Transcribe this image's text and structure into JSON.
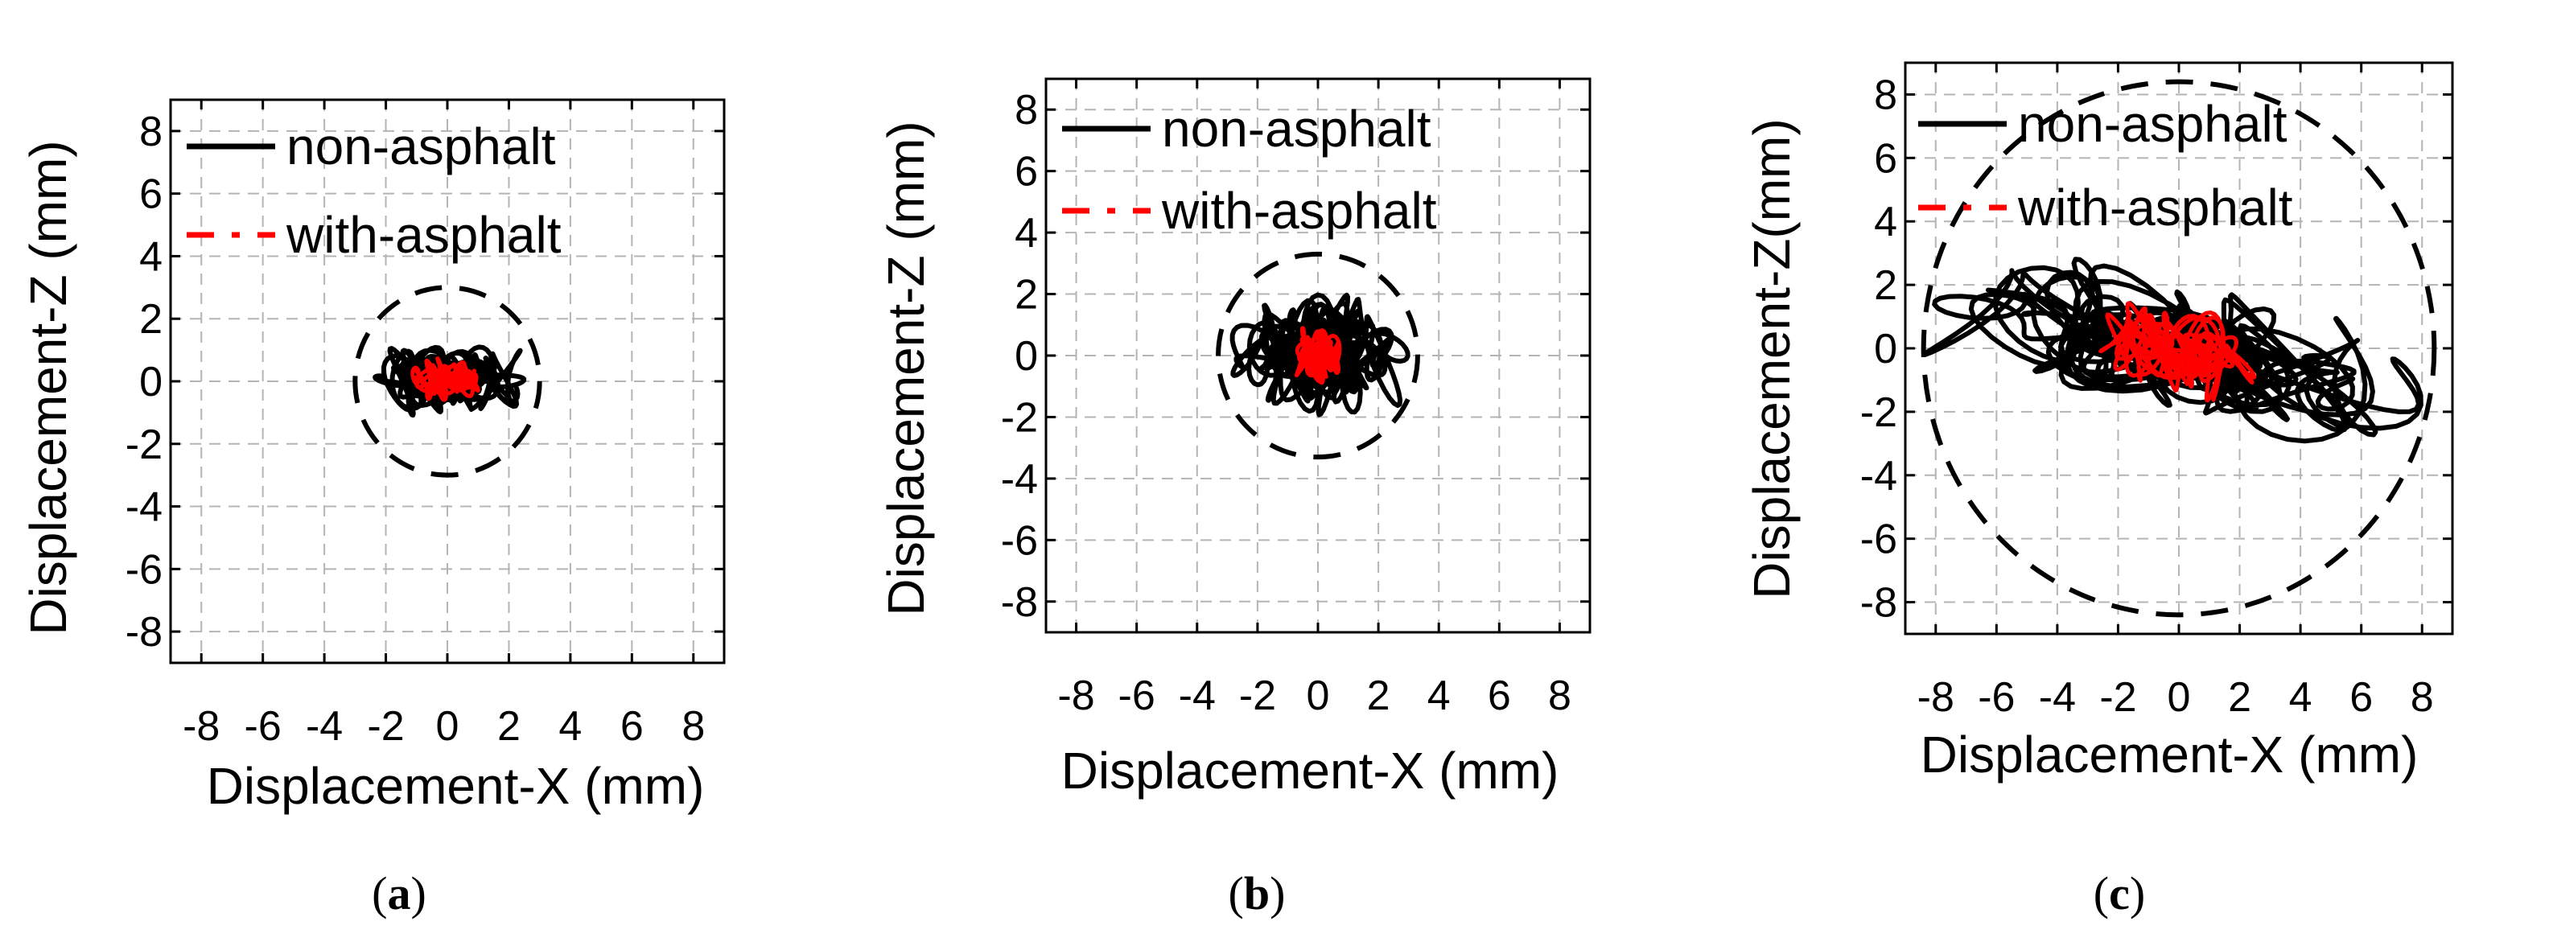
{
  "figure": {
    "panels": [
      {
        "id": "a",
        "caption": "(a)",
        "caption_letter": "a",
        "xlabel": "Displacement-X (mm)",
        "ylabel": "Displacement-Z (mm)",
        "legend": [
          "non-asphalt",
          "with-asphalt"
        ]
      },
      {
        "id": "b",
        "caption": "(b)",
        "caption_letter": "b",
        "xlabel": "Displacement-X (mm)",
        "ylabel": "Displacement-Z (mm)",
        "legend": [
          "non-asphalt",
          "with-asphalt"
        ]
      },
      {
        "id": "c",
        "caption": "(c)",
        "caption_letter": "c",
        "xlabel": "Displacement-X (mm)",
        "ylabel": "Displacement-Z(mm)",
        "legend": [
          "non-asphalt",
          "with-asphalt"
        ]
      }
    ]
  },
  "chart_data": [
    {
      "type": "line",
      "panel": "a",
      "title": "",
      "xlabel": "Displacement-X (mm)",
      "ylabel": "Displacement-Z (mm)",
      "xlim": [
        -9,
        9
      ],
      "ylim": [
        -9,
        9
      ],
      "xticks": [
        "-8",
        "-6",
        "-4",
        "-2",
        "0",
        "2",
        "4",
        "6",
        "8"
      ],
      "yticks": [
        "-8",
        "-6",
        "-4",
        "-2",
        "0",
        "2",
        "4",
        "6",
        "8"
      ],
      "grid": true,
      "legend_position": "top-left",
      "series": [
        {
          "name": "non-asphalt",
          "color": "#000000",
          "style": "solid",
          "x_extent": [
            -2.8,
            2.8
          ],
          "y_extent": [
            -1.1,
            1.2
          ]
        },
        {
          "name": "with-asphalt",
          "color": "#ff0000",
          "style": "dashed",
          "x_extent": [
            -1.2,
            1.2
          ],
          "y_extent": [
            -0.7,
            0.8
          ]
        }
      ],
      "limit_circle": {
        "center": [
          0,
          0
        ],
        "radius": 3.0,
        "style": "dashed",
        "color": "#000000"
      }
    },
    {
      "type": "line",
      "panel": "b",
      "title": "",
      "xlabel": "Displacement-X (mm)",
      "ylabel": "Displacement-Z (mm)",
      "xlim": [
        -9,
        9
      ],
      "ylim": [
        -9,
        9
      ],
      "xticks": [
        "-8",
        "-6",
        "-4",
        "-2",
        "0",
        "2",
        "4",
        "6",
        "8"
      ],
      "yticks": [
        "-8",
        "-6",
        "-4",
        "-2",
        "0",
        "2",
        "4",
        "6",
        "8"
      ],
      "grid": true,
      "legend_position": "top-left",
      "series": [
        {
          "name": "non-asphalt",
          "color": "#000000",
          "style": "solid",
          "x_extent": [
            -3.2,
            3.2
          ],
          "y_extent": [
            -2.0,
            2.1
          ]
        },
        {
          "name": "with-asphalt",
          "color": "#ff0000",
          "style": "dashed",
          "x_extent": [
            -1.2,
            1.2
          ],
          "y_extent": [
            -1.0,
            1.0
          ]
        }
      ],
      "limit_circle": {
        "center": [
          0,
          0
        ],
        "radius": 3.3,
        "style": "dashed",
        "color": "#000000"
      }
    },
    {
      "type": "line",
      "panel": "c",
      "title": "",
      "xlabel": "Displacement-X (mm)",
      "ylabel": "Displacement-Z(mm)",
      "xlim": [
        -9,
        9
      ],
      "ylim": [
        -9,
        9
      ],
      "xticks": [
        "-8",
        "-6",
        "-4",
        "-2",
        "0",
        "2",
        "4",
        "6",
        "8"
      ],
      "yticks": [
        "-8",
        "-6",
        "-4",
        "-2",
        "0",
        "2",
        "4",
        "6",
        "8"
      ],
      "grid": true,
      "legend_position": "top-left",
      "series": [
        {
          "name": "non-asphalt",
          "color": "#000000",
          "style": "solid",
          "x_extent": [
            -8.8,
            8.8
          ],
          "y_extent": [
            -2.4,
            2.3
          ],
          "trend_slope": -0.2
        },
        {
          "name": "with-asphalt",
          "color": "#ff0000",
          "style": "dashed",
          "x_extent": [
            -2.8,
            2.6
          ],
          "y_extent": [
            -1.8,
            1.7
          ],
          "trend_slope": -0.2
        }
      ],
      "limit_circle": {
        "center": [
          0,
          0
        ],
        "radius": 8.4,
        "style": "dashed",
        "color": "#000000"
      }
    }
  ]
}
